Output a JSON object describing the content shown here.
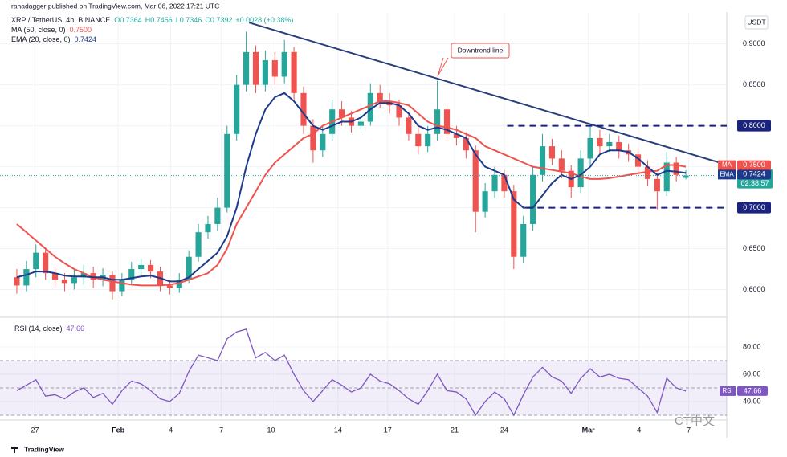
{
  "header": {
    "publisher": "ranadagger published on TradingView.com, Mar 06, 2022 17:21 UTC",
    "symbol": "XRP / TetherUS, 4h, BINANCE",
    "open": "O0.7364",
    "high": "H0.7456",
    "low": "L0.7346",
    "close": "C0.7392",
    "change": "+0.0028 (+0.38%)",
    "ma_label": "MA (50, close, 0)",
    "ma_value": "0.7500",
    "ema_label": "EMA (20, close, 0)",
    "ema_value": "0.7424",
    "currency": "USDT",
    "logo": "TradingView",
    "watermark": "CT中文"
  },
  "chart_data": [
    {
      "type": "candlestick",
      "annotation": "Downtrend line",
      "ylim": [
        0.576,
        0.934
      ],
      "xlim": [
        0,
        71
      ],
      "yticks": [
        {
          "value": 0.6,
          "label": "0.6000"
        },
        {
          "value": 0.65,
          "label": "0.6500"
        },
        {
          "value": 0.7,
          "label": "0.7000"
        },
        {
          "value": 0.75,
          "label": "0.7500"
        },
        {
          "value": 0.8,
          "label": "0.8000"
        },
        {
          "value": 0.85,
          "label": "0.8500"
        },
        {
          "value": 0.9,
          "label": "0.9000"
        }
      ],
      "xticks": [
        {
          "value": 2.4,
          "label": "27"
        },
        {
          "value": 11.1,
          "label": "Feb"
        },
        {
          "value": 16.6,
          "label": "4"
        },
        {
          "value": 21.9,
          "label": "7"
        },
        {
          "value": 27.1,
          "label": "10"
        },
        {
          "value": 34.1,
          "label": "14"
        },
        {
          "value": 39.3,
          "label": "17"
        },
        {
          "value": 46.3,
          "label": "21"
        },
        {
          "value": 51.5,
          "label": "24"
        },
        {
          "value": 60.3,
          "label": "Mar"
        },
        {
          "value": 65.6,
          "label": "4"
        },
        {
          "value": 70.8,
          "label": "7"
        }
      ],
      "grid": true,
      "up_color": "#26a69a",
      "down_color": "#ef5350",
      "candles": [
        [
          0.615,
          0.625,
          0.595,
          0.605
        ],
        [
          0.605,
          0.635,
          0.598,
          0.625
        ],
        [
          0.625,
          0.655,
          0.615,
          0.645
        ],
        [
          0.645,
          0.65,
          0.612,
          0.62
        ],
        [
          0.62,
          0.628,
          0.602,
          0.612
        ],
        [
          0.612,
          0.62,
          0.598,
          0.608
        ],
        [
          0.608,
          0.625,
          0.6,
          0.615
        ],
        [
          0.615,
          0.63,
          0.606,
          0.62
        ],
        [
          0.62,
          0.628,
          0.602,
          0.612
        ],
        [
          0.612,
          0.626,
          0.604,
          0.618
        ],
        [
          0.618,
          0.622,
          0.588,
          0.598
        ],
        [
          0.598,
          0.62,
          0.592,
          0.612
        ],
        [
          0.612,
          0.634,
          0.606,
          0.625
        ],
        [
          0.625,
          0.638,
          0.618,
          0.63
        ],
        [
          0.63,
          0.636,
          0.614,
          0.622
        ],
        [
          0.622,
          0.628,
          0.598,
          0.605
        ],
        [
          0.605,
          0.612,
          0.594,
          0.602
        ],
        [
          0.602,
          0.62,
          0.596,
          0.612
        ],
        [
          0.612,
          0.648,
          0.608,
          0.64
        ],
        [
          0.64,
          0.68,
          0.634,
          0.67
        ],
        [
          0.67,
          0.69,
          0.662,
          0.68
        ],
        [
          0.68,
          0.712,
          0.672,
          0.7
        ],
        [
          0.7,
          0.8,
          0.694,
          0.79
        ],
        [
          0.79,
          0.862,
          0.782,
          0.85
        ],
        [
          0.85,
          0.915,
          0.842,
          0.89
        ],
        [
          0.89,
          0.898,
          0.84,
          0.85
        ],
        [
          0.85,
          0.892,
          0.842,
          0.88
        ],
        [
          0.88,
          0.89,
          0.85,
          0.86
        ],
        [
          0.86,
          0.905,
          0.852,
          0.89
        ],
        [
          0.89,
          0.896,
          0.832,
          0.84
        ],
        [
          0.84,
          0.848,
          0.79,
          0.8
        ],
        [
          0.8,
          0.808,
          0.755,
          0.77
        ],
        [
          0.77,
          0.8,
          0.762,
          0.79
        ],
        [
          0.79,
          0.832,
          0.782,
          0.82
        ],
        [
          0.82,
          0.83,
          0.8,
          0.81
        ],
        [
          0.81,
          0.818,
          0.792,
          0.8
        ],
        [
          0.8,
          0.815,
          0.795,
          0.805
        ],
        [
          0.805,
          0.852,
          0.8,
          0.84
        ],
        [
          0.84,
          0.85,
          0.822,
          0.83
        ],
        [
          0.83,
          0.84,
          0.815,
          0.825
        ],
        [
          0.825,
          0.832,
          0.8,
          0.81
        ],
        [
          0.81,
          0.816,
          0.782,
          0.79
        ],
        [
          0.79,
          0.798,
          0.765,
          0.775
        ],
        [
          0.775,
          0.8,
          0.768,
          0.79
        ],
        [
          0.79,
          0.855,
          0.782,
          0.82
        ],
        [
          0.82,
          0.826,
          0.782,
          0.79
        ],
        [
          0.79,
          0.8,
          0.776,
          0.785
        ],
        [
          0.785,
          0.792,
          0.76,
          0.77
        ],
        [
          0.77,
          0.776,
          0.67,
          0.695
        ],
        [
          0.695,
          0.73,
          0.688,
          0.72
        ],
        [
          0.72,
          0.75,
          0.712,
          0.74
        ],
        [
          0.74,
          0.746,
          0.712,
          0.72
        ],
        [
          0.72,
          0.728,
          0.625,
          0.64
        ],
        [
          0.64,
          0.69,
          0.632,
          0.68
        ],
        [
          0.68,
          0.75,
          0.672,
          0.74
        ],
        [
          0.74,
          0.79,
          0.732,
          0.775
        ],
        [
          0.775,
          0.784,
          0.752,
          0.76
        ],
        [
          0.76,
          0.77,
          0.736,
          0.745
        ],
        [
          0.745,
          0.752,
          0.712,
          0.725
        ],
        [
          0.725,
          0.77,
          0.718,
          0.76
        ],
        [
          0.76,
          0.8,
          0.752,
          0.785
        ],
        [
          0.785,
          0.795,
          0.766,
          0.775
        ],
        [
          0.775,
          0.79,
          0.768,
          0.78
        ],
        [
          0.78,
          0.788,
          0.76,
          0.77
        ],
        [
          0.77,
          0.778,
          0.756,
          0.765
        ],
        [
          0.765,
          0.772,
          0.74,
          0.75
        ],
        [
          0.75,
          0.758,
          0.726,
          0.735
        ],
        [
          0.735,
          0.742,
          0.698,
          0.72
        ],
        [
          0.72,
          0.768,
          0.714,
          0.755
        ],
        [
          0.755,
          0.762,
          0.732,
          0.74
        ],
        [
          0.7364,
          0.7456,
          0.7346,
          0.7392
        ]
      ],
      "series": [
        {
          "name": "MA",
          "color": "#ef5350",
          "last": {
            "value": 0.75,
            "label": "0.7500"
          },
          "values": [
            0.68,
            0.67,
            0.66,
            0.65,
            0.64,
            0.632,
            0.625,
            0.62,
            0.615,
            0.612,
            0.61,
            0.608,
            0.606,
            0.605,
            0.605,
            0.605,
            0.606,
            0.608,
            0.612,
            0.616,
            0.62,
            0.63,
            0.65,
            0.68,
            0.7,
            0.72,
            0.74,
            0.755,
            0.765,
            0.775,
            0.785,
            0.79,
            0.8,
            0.805,
            0.81,
            0.815,
            0.82,
            0.825,
            0.83,
            0.83,
            0.828,
            0.825,
            0.815,
            0.805,
            0.8,
            0.798,
            0.795,
            0.79,
            0.785,
            0.775,
            0.77,
            0.765,
            0.76,
            0.755,
            0.75,
            0.748,
            0.746,
            0.744,
            0.742,
            0.738,
            0.735,
            0.735,
            0.736,
            0.738,
            0.74,
            0.742,
            0.744,
            0.745,
            0.752,
            0.752,
            0.75
          ]
        },
        {
          "name": "EMA",
          "color": "#1e3a8a",
          "last": {
            "value": 0.7424,
            "label": "0.7424"
          },
          "values": [
            0.615,
            0.618,
            0.622,
            0.622,
            0.62,
            0.617,
            0.616,
            0.616,
            0.615,
            0.615,
            0.612,
            0.612,
            0.614,
            0.616,
            0.617,
            0.614,
            0.61,
            0.61,
            0.615,
            0.625,
            0.635,
            0.645,
            0.665,
            0.7,
            0.75,
            0.79,
            0.82,
            0.835,
            0.84,
            0.83,
            0.815,
            0.8,
            0.795,
            0.8,
            0.805,
            0.805,
            0.81,
            0.82,
            0.828,
            0.828,
            0.825,
            0.815,
            0.8,
            0.795,
            0.798,
            0.795,
            0.79,
            0.785,
            0.765,
            0.75,
            0.745,
            0.74,
            0.71,
            0.7,
            0.7,
            0.715,
            0.73,
            0.74,
            0.735,
            0.74,
            0.75,
            0.765,
            0.77,
            0.77,
            0.768,
            0.76,
            0.75,
            0.74,
            0.745,
            0.744,
            0.7424
          ]
        }
      ],
      "last_price": 0.7392,
      "countdown": "02:38:57",
      "levels": [
        {
          "value": 0.8,
          "label": "0.8000",
          "start": 51.8
        },
        {
          "value": 0.7,
          "label": "0.7000",
          "start": 53.8
        }
      ],
      "trendline": {
        "start": [
          24.8,
          0.926
        ],
        "end": [
          73.9,
          0.7555
        ],
        "color": "#2a3f7a"
      }
    },
    {
      "type": "line",
      "title": "RSI (14, close)",
      "series_name": "RSI",
      "color": "#7e57c2",
      "ylim": [
        28.2,
        98.8
      ],
      "yticks": [
        {
          "value": 40,
          "label": "40.00"
        },
        {
          "value": 60,
          "label": "60.00"
        },
        {
          "value": 80,
          "label": "80.00"
        }
      ],
      "bands": [
        30,
        50,
        70
      ],
      "last": 47.66,
      "values": [
        48,
        52,
        56,
        44,
        45,
        42,
        47,
        50,
        43,
        46,
        38,
        48,
        55,
        53,
        48,
        42,
        40,
        46,
        62,
        74,
        72,
        70,
        86,
        91,
        93,
        72,
        76,
        70,
        74,
        60,
        48,
        40,
        48,
        56,
        52,
        47,
        50,
        60,
        55,
        53,
        48,
        42,
        38,
        48,
        60,
        48,
        47,
        42,
        30,
        40,
        47,
        42,
        30,
        45,
        58,
        65,
        58,
        55,
        46,
        57,
        64,
        58,
        60,
        57,
        56,
        50,
        44,
        32,
        57,
        50,
        47.66
      ]
    }
  ]
}
